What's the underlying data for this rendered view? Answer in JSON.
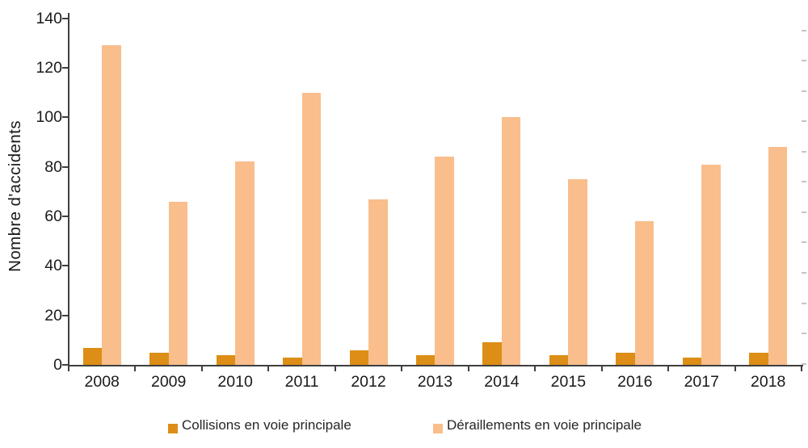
{
  "chart_data": {
    "type": "bar",
    "title": "",
    "ylabel": "Nombre d'accidents",
    "xlabel": "",
    "categories": [
      "2008",
      "2009",
      "2010",
      "2011",
      "2012",
      "2013",
      "2014",
      "2015",
      "2016",
      "2017",
      "2018"
    ],
    "series": [
      {
        "name": "Collisions en voie principale",
        "color": "#DD8E16",
        "values": [
          7,
          5,
          4,
          3,
          6,
          4,
          9,
          4,
          5,
          3,
          5
        ]
      },
      {
        "name": "Déraillements en voie principale",
        "color": "#F9BE8C",
        "values": [
          129,
          66,
          82,
          110,
          67,
          84,
          100,
          75,
          58,
          81,
          88
        ]
      }
    ],
    "ylim": [
      0,
      140
    ],
    "yticks": [
      0,
      20,
      40,
      60,
      80,
      100,
      120,
      140
    ],
    "grid": false,
    "legend_position": "bottom"
  },
  "style": {
    "axis_color": "#3f3f3f",
    "text_color": "#1a1a1a",
    "right_dash_color": "#c4c4c4"
  }
}
